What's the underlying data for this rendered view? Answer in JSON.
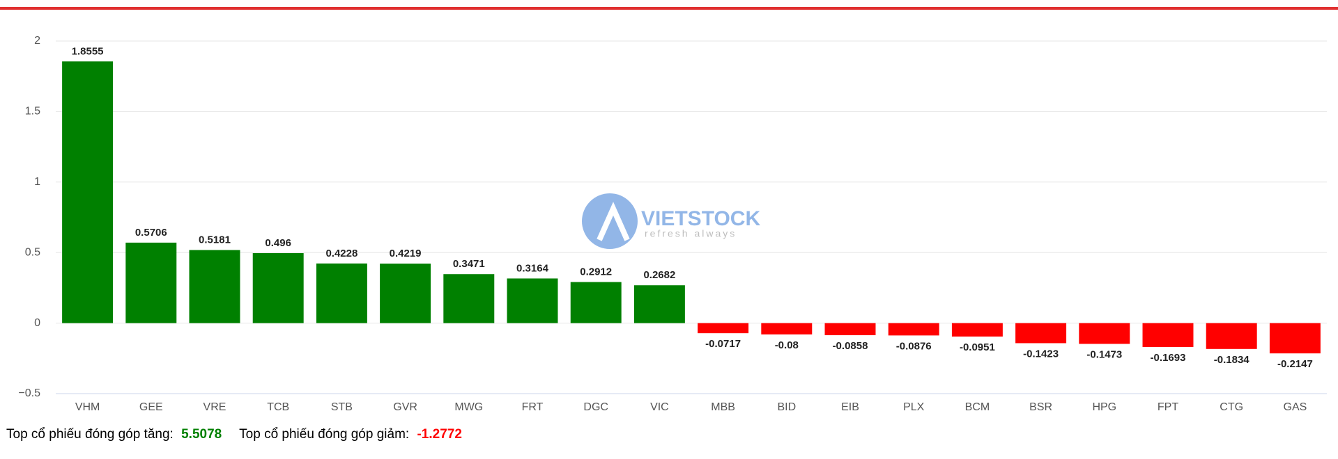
{
  "chart_data": {
    "type": "bar",
    "categories": [
      "VHM",
      "GEE",
      "VRE",
      "TCB",
      "STB",
      "GVR",
      "MWG",
      "FRT",
      "DGC",
      "VIC",
      "MBB",
      "BID",
      "EIB",
      "PLX",
      "BCM",
      "BSR",
      "HPG",
      "FPT",
      "CTG",
      "GAS"
    ],
    "values": [
      1.8555,
      0.5706,
      0.5181,
      0.496,
      0.4228,
      0.4219,
      0.3471,
      0.3164,
      0.2912,
      0.2682,
      -0.0717,
      -0.08,
      -0.0858,
      -0.0876,
      -0.0951,
      -0.1423,
      -0.1473,
      -0.1693,
      -0.1834,
      -0.2147
    ],
    "positive_color": "#008000",
    "negative_color": "#ff0000",
    "ylim": [
      -0.5,
      2
    ],
    "yticks": [
      {
        "value": -0.5,
        "label": "−0.5"
      },
      0,
      0.5,
      1,
      1.5,
      2
    ],
    "grid": true,
    "watermark": {
      "brand": "VIETSTOCK",
      "tagline": "refresh always"
    },
    "footer": {
      "up_label": "Top cổ phiếu đóng góp tăng:",
      "up_value": 5.5078,
      "down_label": "Top cổ phiếu đóng góp giảm:",
      "down_value": -1.2772
    }
  }
}
